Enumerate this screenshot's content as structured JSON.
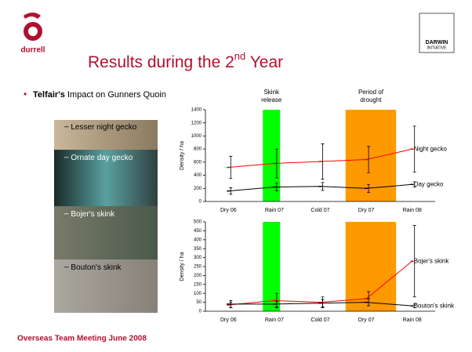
{
  "slide": {
    "title": "Results during the 2",
    "title_sup": "nd",
    "title_end": " Year",
    "bullet_bold": "Telfair's",
    "bullet_rest": " Impact on Gunners Quoin",
    "species": [
      "Lesser night gecko",
      "Ornate day gecko",
      "Bojer's skink",
      "Bouton's skink"
    ],
    "footer": "Overseas Team Meeting June 2008",
    "logo_left": "durrell",
    "logo_right": "DARWIN",
    "logo_right_sub": "INITIATIVE"
  },
  "chart_data": [
    {
      "type": "line",
      "ylabel": "Density / ha",
      "categories": [
        "Dry 06",
        "Rain 07",
        "Cold 07",
        "Dry 07",
        "Rain 08"
      ],
      "ylim": [
        0,
        1400
      ],
      "yticks": [
        0,
        200,
        400,
        600,
        800,
        1000,
        1200,
        1400
      ],
      "bands": [
        {
          "label": "Skink release",
          "color": "#00ff00"
        },
        {
          "label": "Period of drought",
          "color": "#ff9900"
        }
      ],
      "series": [
        {
          "name": "Night gecko",
          "color": "#ff0000",
          "values": [
            520,
            580,
            610,
            640,
            800
          ],
          "errors": [
            170,
            220,
            270,
            200,
            350
          ]
        },
        {
          "name": "Day gecko",
          "color": "#000000",
          "values": [
            160,
            220,
            230,
            200,
            260
          ],
          "errors": [
            50,
            60,
            60,
            60,
            40
          ]
        }
      ]
    },
    {
      "type": "line",
      "ylabel": "Density / ha",
      "categories": [
        "Dry 06",
        "Rain 07",
        "Cold 07",
        "Dry 07",
        "Rain 08"
      ],
      "ylim": [
        0,
        500
      ],
      "yticks": [
        0,
        50,
        100,
        150,
        200,
        250,
        300,
        350,
        400,
        450,
        500
      ],
      "series": [
        {
          "name": "Bojer's skink",
          "color": "#ff0000",
          "values": [
            35,
            60,
            50,
            70,
            280
          ],
          "errors": [
            15,
            40,
            30,
            40,
            200
          ]
        },
        {
          "name": "Bouton's skink",
          "color": "#000000",
          "values": [
            40,
            40,
            45,
            50,
            30
          ],
          "errors": [
            20,
            15,
            20,
            20,
            10
          ]
        }
      ]
    }
  ]
}
